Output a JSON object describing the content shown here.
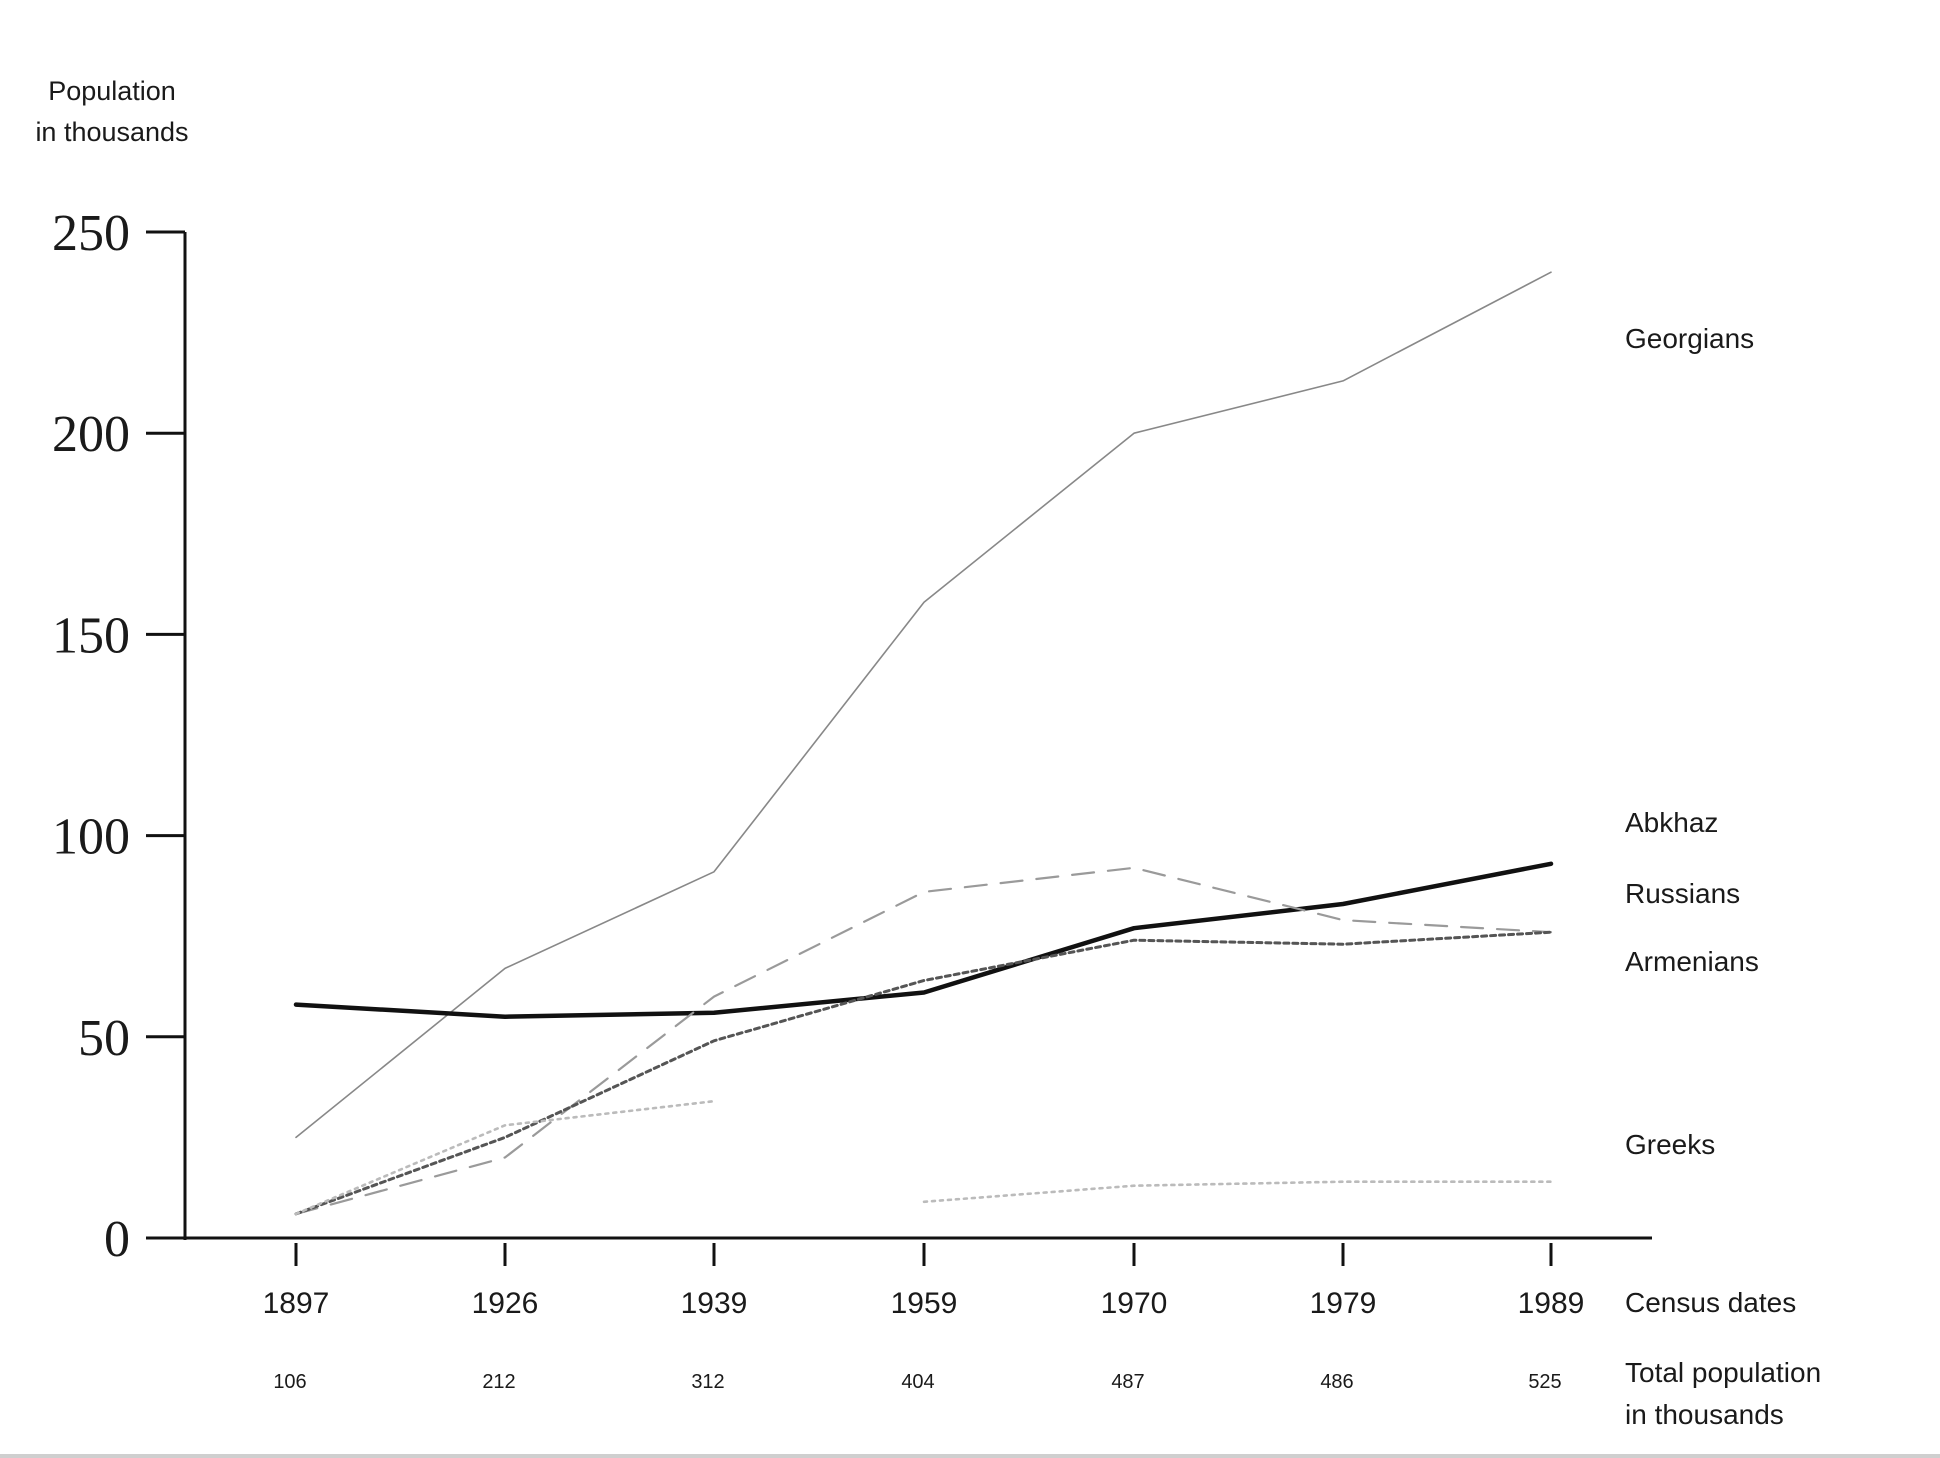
{
  "chart_data": {
    "type": "line",
    "title": "",
    "ylabel_lines": [
      "Population",
      "in thousands"
    ],
    "xlabel": "Census dates",
    "total_label_lines": [
      "Total population",
      "in thousands"
    ],
    "x": [
      "1897",
      "1926",
      "1939",
      "1959",
      "1970",
      "1979",
      "1989"
    ],
    "y_ticks": [
      "0",
      "50",
      "100",
      "150",
      "200",
      "250"
    ],
    "ylim": [
      0,
      250
    ],
    "totals": [
      "106",
      "212",
      "312",
      "404",
      "487",
      "486",
      "525"
    ],
    "series": [
      {
        "name": "Georgians",
        "values": [
          25,
          67,
          91,
          158,
          200,
          213,
          240
        ],
        "style": "thin",
        "color": "#888888"
      },
      {
        "name": "Abkhaz",
        "values": [
          58,
          55,
          56,
          61,
          77,
          83,
          93
        ],
        "style": "bold",
        "color": "#111111"
      },
      {
        "name": "Russians",
        "values": [
          6,
          20,
          60,
          86,
          92,
          79,
          76
        ],
        "style": "dashed",
        "color": "#9a9a9a"
      },
      {
        "name": "Armenians",
        "values": [
          6,
          25,
          49,
          64,
          74,
          73,
          76
        ],
        "style": "dotted-dark",
        "color": "#555555"
      },
      {
        "name": "Greeks",
        "values": [
          6,
          28,
          34,
          9,
          13,
          14,
          14
        ],
        "style": "dotted-light",
        "color": "#bbbbbb",
        "gap_between_indexes": [
          2,
          3
        ]
      }
    ],
    "legend_placement": "right, beside line ends",
    "grid": false
  }
}
